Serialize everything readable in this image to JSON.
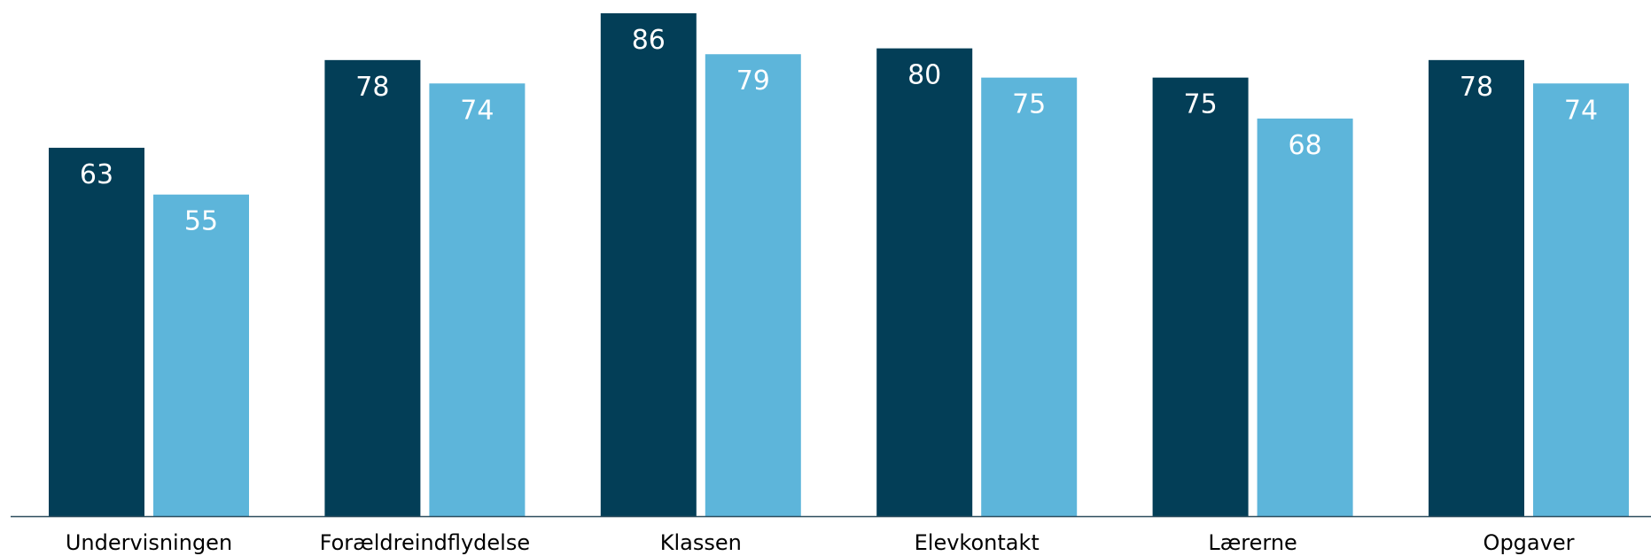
{
  "chart_data": {
    "type": "bar",
    "categories": [
      "Undervisningen",
      "Forældreindflydelse",
      "Klassen",
      "Elevkontakt",
      "Lærerne",
      "Opgaver"
    ],
    "series": [
      {
        "values": [
          63,
          78,
          86,
          80,
          75,
          78
        ],
        "color": "#033e57"
      },
      {
        "values": [
          55,
          74,
          79,
          75,
          68,
          74
        ],
        "color": "#5db5da"
      }
    ],
    "ylim": [
      0,
      86
    ],
    "grid": false,
    "legend": "none",
    "title": "",
    "xlabel": "",
    "ylabel": "",
    "axis_color": "#2d4d5e"
  }
}
